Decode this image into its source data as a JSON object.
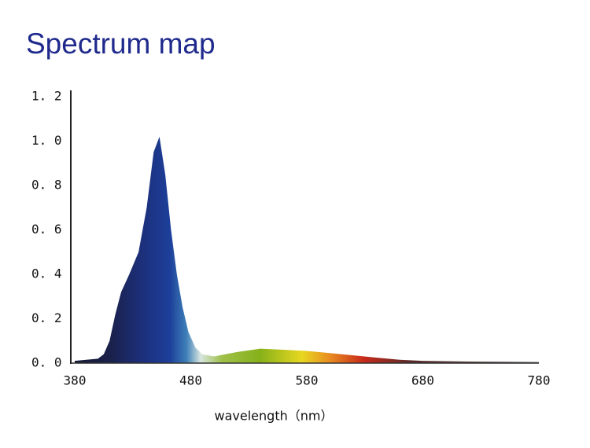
{
  "chart_data": {
    "type": "area",
    "title": "Spectrum map",
    "x_label": "wavelength（nm）",
    "x": [
      380,
      400,
      405,
      410,
      415,
      420,
      427,
      435,
      442,
      448,
      453,
      458,
      463,
      468,
      473,
      478,
      484,
      490,
      500,
      520,
      540,
      560,
      580,
      600,
      620,
      640,
      660,
      680,
      720,
      780
    ],
    "values": [
      0.01,
      0.02,
      0.04,
      0.1,
      0.22,
      0.32,
      0.4,
      0.5,
      0.7,
      0.95,
      1.02,
      0.85,
      0.6,
      0.4,
      0.25,
      0.14,
      0.07,
      0.04,
      0.03,
      0.05,
      0.065,
      0.06,
      0.055,
      0.045,
      0.035,
      0.025,
      0.015,
      0.01,
      0.007,
      0.005
    ],
    "xlim": [
      380,
      780
    ],
    "xticks": [
      380,
      480,
      580,
      680,
      780
    ],
    "ylim": [
      0,
      1.2
    ],
    "yticks": [
      {
        "value": 0,
        "label": "0. 0"
      },
      {
        "value": 0.2,
        "label": "0. 2"
      },
      {
        "value": 0.4,
        "label": "0. 4"
      },
      {
        "value": 0.6,
        "label": "0. 6"
      },
      {
        "value": 0.8,
        "label": "0. 8"
      },
      {
        "value": 1.0,
        "label": "1. 0"
      },
      {
        "value": 1.2,
        "label": "1. 2"
      }
    ],
    "grid": false
  }
}
